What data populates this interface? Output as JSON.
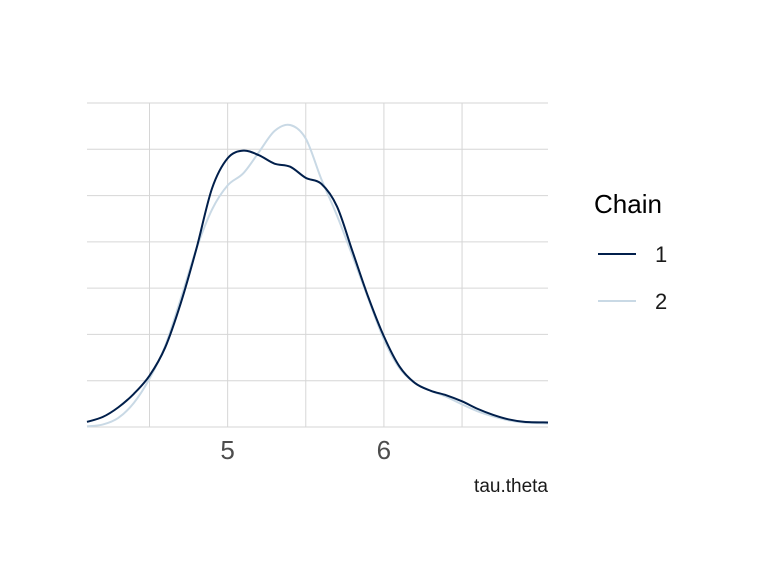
{
  "chart_data": {
    "type": "line",
    "title": "",
    "xlabel": "tau.theta",
    "ylabel": "",
    "xlim": [
      4.1,
      7.05
    ],
    "ylim": [
      0,
      1.0
    ],
    "x_ticks": [
      5,
      6
    ],
    "x_tick_labels": [
      "5",
      "6"
    ],
    "x_minor_gridlines": [
      4.5,
      5.5,
      6.5
    ],
    "y_gridline_count": 8,
    "y_axis_labels_shown": false,
    "grid": true,
    "legend": {
      "title": "Chain",
      "placement": "right",
      "entries": [
        "1",
        "2"
      ]
    },
    "series": [
      {
        "name": "1",
        "color": "#011f4b",
        "x": [
          4.1,
          4.2,
          4.3,
          4.4,
          4.5,
          4.6,
          4.7,
          4.8,
          4.9,
          5.0,
          5.1,
          5.2,
          5.3,
          5.4,
          5.5,
          5.6,
          5.7,
          5.8,
          5.9,
          6.0,
          6.1,
          6.2,
          6.3,
          6.4,
          6.5,
          6.6,
          6.7,
          6.8,
          6.9,
          7.05
        ],
        "values": [
          0.017,
          0.033,
          0.065,
          0.11,
          0.17,
          0.263,
          0.41,
          0.59,
          0.79,
          0.89,
          0.915,
          0.9,
          0.872,
          0.862,
          0.825,
          0.805,
          0.73,
          0.58,
          0.43,
          0.3,
          0.2,
          0.145,
          0.12,
          0.105,
          0.085,
          0.06,
          0.04,
          0.025,
          0.017,
          0.015
        ]
      },
      {
        "name": "2",
        "color": "#c9d9e5",
        "x": [
          4.1,
          4.2,
          4.3,
          4.4,
          4.5,
          4.6,
          4.7,
          4.8,
          4.9,
          5.0,
          5.1,
          5.2,
          5.3,
          5.4,
          5.5,
          5.6,
          5.7,
          5.8,
          5.9,
          6.0,
          6.1,
          6.2,
          6.3,
          6.4,
          6.5,
          6.6,
          6.7,
          6.8,
          6.9,
          7.05
        ],
        "values": [
          0.002,
          0.008,
          0.03,
          0.08,
          0.16,
          0.268,
          0.425,
          0.59,
          0.72,
          0.8,
          0.84,
          0.91,
          0.98,
          1.0,
          0.955,
          0.82,
          0.7,
          0.565,
          0.425,
          0.29,
          0.195,
          0.145,
          0.12,
          0.1,
          0.075,
          0.052,
          0.035,
          0.022,
          0.015,
          0.012
        ]
      }
    ]
  }
}
